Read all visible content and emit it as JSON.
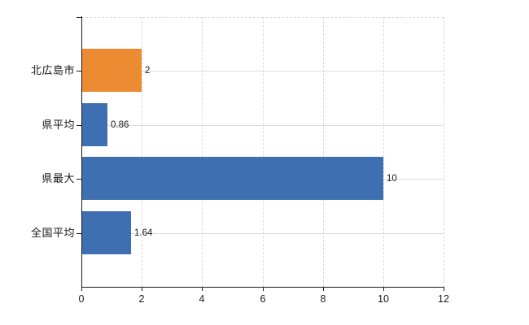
{
  "chart_data": {
    "type": "bar",
    "orientation": "horizontal",
    "title": "",
    "xlabel": "",
    "ylabel": "",
    "categories": [
      "北広島市",
      "県平均",
      "県最大",
      "全国平均"
    ],
    "values": [
      2,
      0.86,
      10,
      1.64
    ],
    "value_labels": [
      "2",
      "0.86",
      "10",
      "1.64"
    ],
    "series_colors": [
      "#ED8B33",
      "#3E6FB0",
      "#3E6FB0",
      "#3E6FB0"
    ],
    "xlim": [
      0,
      12
    ],
    "x_ticks": [
      0,
      2,
      4,
      6,
      8,
      10,
      12
    ],
    "grid": true,
    "legend_position": "none",
    "colors": {
      "highlight_bar": "#ED8B33",
      "default_bar": "#3E6FB0",
      "gridline": "#D7DBD7",
      "axis": "#1A1A1A",
      "text": "#1A1A1A",
      "background": "#FFFFFF"
    }
  }
}
